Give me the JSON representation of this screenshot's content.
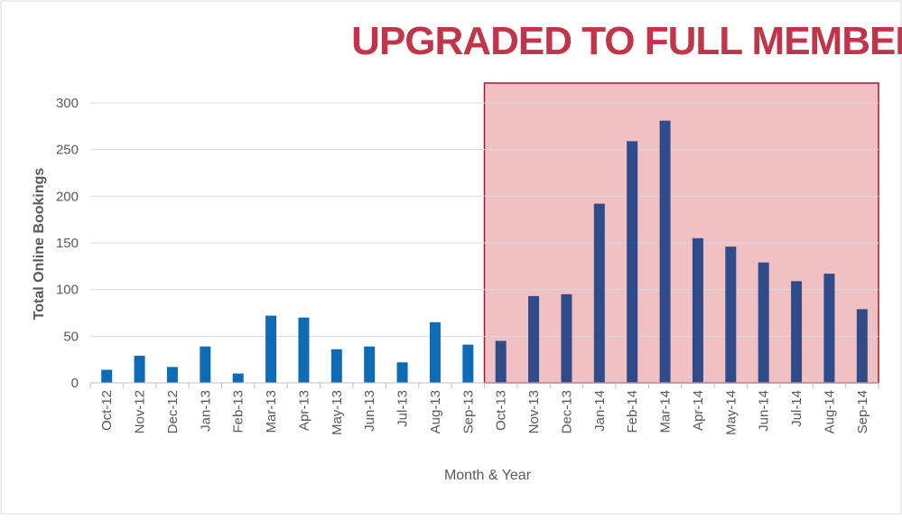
{
  "chart_data": {
    "type": "bar",
    "title": "",
    "annotation": "UPGRADED TO FULL MEMBERSHIP",
    "xlabel": "Month & Year",
    "ylabel": "Total Online Bookings",
    "ylim": [
      0,
      300
    ],
    "yticks": [
      0,
      50,
      100,
      150,
      200,
      250,
      300
    ],
    "grid": true,
    "legend": "none",
    "categories": [
      "Oct-12",
      "Nov-12",
      "Dec-12",
      "Jan-13",
      "Feb-13",
      "Mar-13",
      "Apr-13",
      "May-13",
      "Jun-13",
      "Jul-13",
      "Aug-13",
      "Sep-13",
      "Oct-13",
      "Nov-13",
      "Dec-13",
      "Jan-14",
      "Feb-14",
      "Mar-14",
      "Apr-14",
      "May-14",
      "Jun-14",
      "Jul-14",
      "Aug-14",
      "Sep-14"
    ],
    "values": [
      14,
      29,
      17,
      39,
      10,
      72,
      70,
      36,
      39,
      22,
      65,
      41,
      45,
      93,
      95,
      192,
      259,
      281,
      155,
      146,
      129,
      109,
      117,
      79
    ],
    "highlight_start_index": 12,
    "colors": {
      "bar_before": "#0e6cb7",
      "bar_after": "#2f4b8a",
      "highlight_fill": "#f0c0c3",
      "highlight_border": "#a0192a",
      "annotation": "#c0354a",
      "grid": "#d9d9d9",
      "text": "#595959"
    }
  }
}
